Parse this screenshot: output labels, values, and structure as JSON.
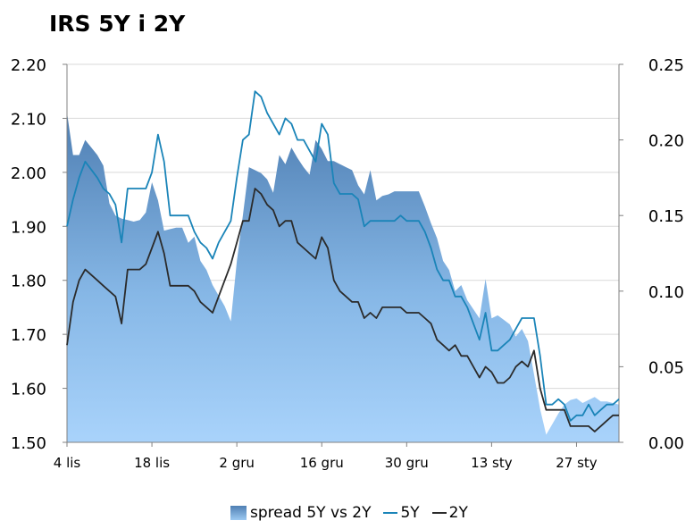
{
  "chart_data": {
    "type": "line",
    "title": "IRS 5Y i 2Y",
    "categories": [
      "4 lis",
      "18 lis",
      "2 gru",
      "16 gru",
      "30 gru",
      "13 sty",
      "27 sty"
    ],
    "y_left": {
      "ticks": [
        "1.50",
        "1.60",
        "1.70",
        "1.80",
        "1.90",
        "2.00",
        "2.10",
        "2.20"
      ],
      "ylim": [
        1.5,
        2.2
      ]
    },
    "y_right": {
      "ticks": [
        "0.00",
        "0.05",
        "0.10",
        "0.15",
        "0.20",
        "0.25"
      ],
      "ylim": [
        0,
        0.25
      ]
    },
    "x_range": [
      0,
      91
    ],
    "grid": "horizontal",
    "legend_position": "bottom",
    "series": [
      {
        "name": "spread 5Y vs 2Y",
        "axis": "right",
        "kind": "area",
        "color": "#6a98c8",
        "x": [
          0,
          1,
          2,
          3,
          5,
          6,
          7,
          8,
          9,
          10,
          11,
          12,
          13,
          14,
          15,
          16,
          17,
          18,
          19,
          20,
          21,
          22,
          23,
          24,
          25,
          26,
          27,
          28,
          29,
          30,
          31,
          32,
          33,
          34,
          35,
          36,
          37,
          38,
          39,
          40,
          41,
          42,
          43,
          44,
          45,
          46,
          47,
          48,
          49,
          50,
          51,
          52,
          53,
          54,
          55,
          56,
          57,
          58,
          59,
          60,
          61,
          62,
          63,
          64,
          65,
          66,
          67,
          68,
          69,
          70,
          71,
          72,
          73,
          74,
          75,
          76,
          77,
          78,
          79,
          80,
          81,
          82,
          83,
          84,
          85,
          86,
          87,
          88,
          89,
          90,
          91
        ],
        "values": [
          0.218,
          0.19,
          0.19,
          0.2,
          0.19,
          0.183,
          0.158,
          0.15,
          0.148,
          0.147,
          0.146,
          0.147,
          0.152,
          0.172,
          0.16,
          0.14,
          0.141,
          0.142,
          0.142,
          0.132,
          0.136,
          0.12,
          0.114,
          0.104,
          0.097,
          0.09,
          0.08,
          0.12,
          0.15,
          0.182,
          0.18,
          0.178,
          0.174,
          0.165,
          0.19,
          0.184,
          0.195,
          0.188,
          0.182,
          0.177,
          0.2,
          0.194,
          0.186,
          0.186,
          0.184,
          0.182,
          0.18,
          0.17,
          0.164,
          0.18,
          0.16,
          0.163,
          0.164,
          0.166,
          0.166,
          0.166,
          0.166,
          0.166,
          0.156,
          0.145,
          0.135,
          0.12,
          0.114,
          0.1,
          0.104,
          0.094,
          0.088,
          0.082,
          0.108,
          0.082,
          0.084,
          0.081,
          0.078,
          0.07,
          0.075,
          0.067,
          0.045,
          0.022,
          0.005,
          0.012,
          0.019,
          0.025,
          0.028,
          0.029,
          0.026,
          0.028,
          0.03,
          0.027,
          0.027,
          0.026,
          0.025
        ]
      },
      {
        "name": "5Y",
        "axis": "left",
        "kind": "line",
        "color": "#1a84b8",
        "x": [
          0,
          1,
          2,
          3,
          5,
          6,
          7,
          8,
          9,
          10,
          11,
          12,
          13,
          14,
          15,
          16,
          17,
          18,
          19,
          20,
          21,
          22,
          23,
          24,
          25,
          26,
          27,
          28,
          29,
          30,
          31,
          32,
          33,
          34,
          35,
          36,
          37,
          38,
          39,
          40,
          41,
          42,
          43,
          44,
          45,
          46,
          47,
          48,
          49,
          50,
          51,
          52,
          53,
          54,
          55,
          56,
          57,
          58,
          59,
          60,
          61,
          62,
          63,
          64,
          65,
          66,
          67,
          68,
          69,
          70,
          71,
          72,
          73,
          74,
          75,
          76,
          77,
          78,
          79,
          80,
          81,
          82,
          83,
          84,
          85,
          86,
          87,
          88,
          89,
          90,
          91
        ],
        "values": [
          1.9,
          1.95,
          1.99,
          2.02,
          1.99,
          1.97,
          1.96,
          1.94,
          1.87,
          1.97,
          1.97,
          1.97,
          1.97,
          2.0,
          2.07,
          2.02,
          1.92,
          1.92,
          1.92,
          1.92,
          1.89,
          1.87,
          1.86,
          1.84,
          1.87,
          1.89,
          1.91,
          1.99,
          2.06,
          2.07,
          2.15,
          2.14,
          2.11,
          2.09,
          2.07,
          2.1,
          2.09,
          2.06,
          2.06,
          2.04,
          2.02,
          2.09,
          2.07,
          1.98,
          1.96,
          1.96,
          1.96,
          1.95,
          1.9,
          1.91,
          1.91,
          1.91,
          1.91,
          1.91,
          1.92,
          1.91,
          1.91,
          1.91,
          1.89,
          1.86,
          1.82,
          1.8,
          1.8,
          1.77,
          1.77,
          1.75,
          1.72,
          1.69,
          1.74,
          1.67,
          1.67,
          1.68,
          1.69,
          1.71,
          1.73,
          1.73,
          1.73,
          1.66,
          1.57,
          1.57,
          1.58,
          1.57,
          1.54,
          1.55,
          1.55,
          1.57,
          1.55,
          1.56,
          1.57,
          1.57,
          1.58
        ]
      },
      {
        "name": "2Y",
        "axis": "left",
        "kind": "line",
        "color": "#2b2b2b",
        "x": [
          0,
          1,
          2,
          3,
          5,
          6,
          7,
          8,
          9,
          10,
          11,
          12,
          13,
          14,
          15,
          16,
          17,
          18,
          19,
          20,
          21,
          22,
          23,
          24,
          25,
          26,
          27,
          28,
          29,
          30,
          31,
          32,
          33,
          34,
          35,
          36,
          37,
          38,
          39,
          40,
          41,
          42,
          43,
          44,
          45,
          46,
          47,
          48,
          49,
          50,
          51,
          52,
          53,
          54,
          55,
          56,
          57,
          58,
          59,
          60,
          61,
          62,
          63,
          64,
          65,
          66,
          67,
          68,
          69,
          70,
          71,
          72,
          73,
          74,
          75,
          76,
          77,
          78,
          79,
          80,
          81,
          82,
          83,
          84,
          85,
          86,
          87,
          88,
          89,
          90,
          91
        ],
        "values": [
          1.68,
          1.76,
          1.8,
          1.82,
          1.8,
          1.79,
          1.78,
          1.77,
          1.72,
          1.82,
          1.82,
          1.82,
          1.83,
          1.86,
          1.89,
          1.85,
          1.79,
          1.79,
          1.79,
          1.79,
          1.78,
          1.76,
          1.75,
          1.74,
          1.77,
          1.8,
          1.83,
          1.87,
          1.91,
          1.91,
          1.97,
          1.96,
          1.94,
          1.93,
          1.9,
          1.91,
          1.91,
          1.87,
          1.86,
          1.85,
          1.84,
          1.88,
          1.86,
          1.8,
          1.78,
          1.77,
          1.76,
          1.76,
          1.73,
          1.74,
          1.73,
          1.75,
          1.75,
          1.75,
          1.75,
          1.74,
          1.74,
          1.74,
          1.73,
          1.72,
          1.69,
          1.68,
          1.67,
          1.68,
          1.66,
          1.66,
          1.64,
          1.62,
          1.64,
          1.63,
          1.61,
          1.61,
          1.62,
          1.64,
          1.65,
          1.64,
          1.67,
          1.6,
          1.56,
          1.56,
          1.56,
          1.56,
          1.53,
          1.53,
          1.53,
          1.53,
          1.52,
          1.53,
          1.54,
          1.55,
          1.55
        ]
      }
    ]
  }
}
